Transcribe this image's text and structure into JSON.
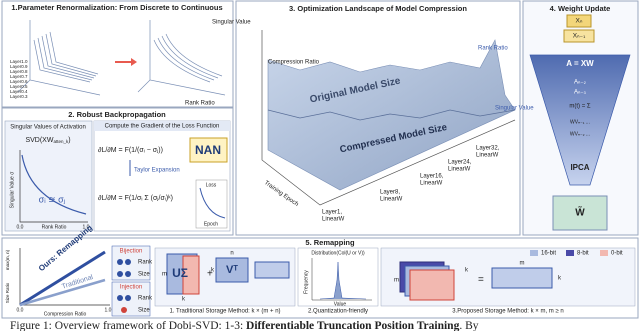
{
  "panel1": {
    "title": "1.Parameter Renormalization: From Discrete to Continuous",
    "y_label": "Singular Value",
    "x_label": "Rank Ratio",
    "layer_labels": [
      "Layer1.0",
      "Layer0.9",
      "Layer0.8",
      "Layer0.7",
      "Layer0.6",
      "Layer0.5",
      "Layer0.4",
      "Layer0.3"
    ]
  },
  "panel2": {
    "title": "2. Robust Backpropagation",
    "left_title": "Singular Values of Activation",
    "svd": "SVD(XW",
    "svd_sub": "atten_k",
    "svd_close": ")",
    "y_label": "Singular Value σ",
    "approx": "σᵢ ≅ σⱼ",
    "x_min": "0.0",
    "x_label": "Rank Ratio",
    "x_max": "1.0",
    "right_title": "Compute the Gradient of the Loss Function",
    "eq1": "∂L/∂M = F(1/(σᵢ − σⱼ))",
    "nan": "NAN",
    "taylor": "Taylor Expansion",
    "eq2": "∂L/∂M = F(1/σᵢ Σ (σⱼ/σᵢ)ᵏ)",
    "loss": "Loss",
    "epoch": "Epoch"
  },
  "panel3": {
    "title": "3. Optimization Landscape of Model Compression",
    "z_label": "Compression Ratio",
    "rank_ratio": "Rank Ratio",
    "singular_value": "Singular Value",
    "original": "Original Model Size",
    "compressed": "Compressed Model Size",
    "epoch": "Training Epoch",
    "layers": [
      {
        "layer": "Layer32,",
        "module": "LinearW"
      },
      {
        "layer": "Layer24,",
        "module": "LinearW"
      },
      {
        "layer": "Layer16,",
        "module": "LinearW"
      },
      {
        "layer": "Layer8,",
        "module": "LinearW"
      },
      {
        "layer": "Layer1,",
        "module": "LinearW"
      }
    ]
  },
  "panel4": {
    "title": "4. Weight Update",
    "inputs": [
      "Xₙ",
      "Xₙ₋₁"
    ],
    "equation": "A = XW",
    "stack": [
      "Aₙ₋₂",
      "Aₙ₋₃",
      "m(t) = Σ",
      "WVₙ₋₁ ...",
      "WVₙ₋₂ ..."
    ],
    "ipca": "IPCA",
    "output": "W̃"
  },
  "panel5": {
    "title": "5. Remapping",
    "y_top": "max(m, n)",
    "y_label": "Size Ratio",
    "x_min": "0.0",
    "x_max": "1.0",
    "x_label": "Compression Ratio",
    "ours": "Ours: Remapping",
    "traditional": "Traditional",
    "bijection": "Bijection",
    "injection": "Injection",
    "rank": "Rank",
    "size": "Size",
    "u_sigma": "UΣ",
    "v_t": "Vᵀ",
    "m": "m",
    "n": "n",
    "k": "k",
    "distribution": "Distribution(Col(U or V))",
    "frequency": "Frequency",
    "value": "Value",
    "legend": [
      "16-bit",
      "8-bit",
      "0-bit"
    ],
    "steps": [
      "1. Traditional Storage Method: k × (m + n)",
      "2.Quantization-friendly",
      "3.Proposed Storage Method: k × m, m ≥ n"
    ]
  },
  "caption": {
    "prefix": "Figure 1: Overview framework of Dobi-SVD: 1-3: ",
    "bold": "Differentiable Truncation Position Training",
    "suffix": ". By"
  }
}
